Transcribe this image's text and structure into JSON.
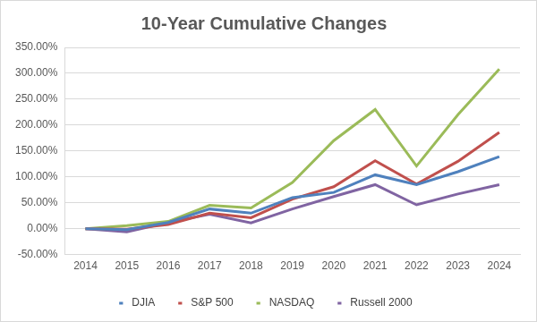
{
  "chart_data": {
    "type": "line",
    "title": "10-Year Cumulative Changes",
    "categories": [
      "2014",
      "2015",
      "2016",
      "2017",
      "2018",
      "2019",
      "2020",
      "2021",
      "2022",
      "2023",
      "2024"
    ],
    "series": [
      {
        "name": "DJIA",
        "color": "#4f81bd",
        "values": [
          0,
          -2,
          12,
          38,
          30,
          60,
          70,
          104,
          85,
          110,
          139
        ]
      },
      {
        "name": "S&P 500",
        "color": "#c0504d",
        "values": [
          0,
          -1,
          8,
          30,
          21,
          57,
          81,
          131,
          86,
          130,
          186
        ]
      },
      {
        "name": "NASDAQ",
        "color": "#9bbb59",
        "values": [
          0,
          6,
          14,
          45,
          40,
          89,
          170,
          230,
          121,
          220,
          308
        ]
      },
      {
        "name": "Russell 2000",
        "color": "#8064a2",
        "values": [
          0,
          -6,
          12,
          28,
          11,
          38,
          62,
          85,
          46,
          67,
          85
        ]
      }
    ],
    "ylim": [
      -50,
      350
    ],
    "yticks": [
      {
        "value": -50,
        "label": "-50.00%"
      },
      {
        "value": 0,
        "label": "0.00%"
      },
      {
        "value": 50,
        "label": "50.00%"
      },
      {
        "value": 100,
        "label": "100.00%"
      },
      {
        "value": 150,
        "label": "150.00%"
      },
      {
        "value": 200,
        "label": "200.00%"
      },
      {
        "value": 250,
        "label": "250.00%"
      },
      {
        "value": 300,
        "label": "300.00%"
      },
      {
        "value": 350,
        "label": "350.00%"
      }
    ],
    "grid": true,
    "legend": "bottom",
    "marker": "none"
  }
}
